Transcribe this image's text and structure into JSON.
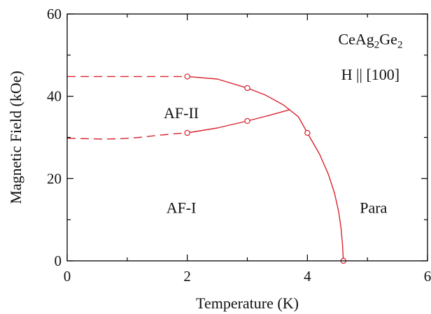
{
  "chart_data": {
    "type": "line",
    "xlabel": "Temperature (K)",
    "ylabel": "Magnetic Field (kOe)",
    "xlim": [
      0,
      6
    ],
    "ylim": [
      0,
      60
    ],
    "x_ticks": [
      "0",
      "2",
      "4",
      "6"
    ],
    "y_ticks": [
      "0",
      "20",
      "40",
      "60"
    ],
    "annotation": {
      "compound_parts": [
        {
          "text": "CeAg",
          "sub": false
        },
        {
          "text": "2",
          "sub": true
        },
        {
          "text": "Ge",
          "sub": false
        },
        {
          "text": "2",
          "sub": true
        }
      ],
      "field_direction": "H || [100]"
    },
    "regions": [
      {
        "label": "AF-II",
        "x": 1.9,
        "y": 36
      },
      {
        "label": "AF-I",
        "x": 1.9,
        "y": 13
      },
      {
        "label": "Para",
        "x": 5.1,
        "y": 13
      }
    ],
    "series": [
      {
        "style": "dashed",
        "points": [
          [
            0.0,
            44.8
          ],
          [
            0.5,
            44.8
          ],
          [
            1.0,
            44.8
          ],
          [
            1.5,
            44.8
          ],
          [
            2.0,
            44.8
          ]
        ]
      },
      {
        "style": "dashed",
        "points": [
          [
            0.0,
            29.8
          ],
          [
            0.3,
            29.7
          ],
          [
            0.6,
            29.6
          ],
          [
            0.9,
            29.7
          ],
          [
            1.2,
            30.0
          ],
          [
            1.5,
            30.5
          ],
          [
            1.8,
            30.9
          ],
          [
            2.0,
            31.1
          ]
        ]
      },
      {
        "style": "solid",
        "points": [
          [
            2.0,
            44.8
          ],
          [
            2.5,
            44.2
          ],
          [
            3.0,
            42.0
          ],
          [
            3.3,
            40.3
          ],
          [
            3.6,
            37.9
          ],
          [
            3.85,
            35.0
          ],
          [
            4.0,
            31.1
          ],
          [
            4.2,
            26.0
          ],
          [
            4.35,
            21.0
          ],
          [
            4.45,
            16.5
          ],
          [
            4.52,
            12.0
          ],
          [
            4.56,
            8.0
          ],
          [
            4.585,
            4.0
          ],
          [
            4.6,
            0.0
          ]
        ]
      },
      {
        "style": "solid",
        "points": [
          [
            2.0,
            31.1
          ],
          [
            2.5,
            32.3
          ],
          [
            3.0,
            34.0
          ],
          [
            3.35,
            35.3
          ],
          [
            3.7,
            36.7
          ]
        ]
      }
    ],
    "markers": [
      [
        2.0,
        44.8
      ],
      [
        3.0,
        42.0
      ],
      [
        2.0,
        31.1
      ],
      [
        3.0,
        34.0
      ],
      [
        4.0,
        31.1
      ],
      [
        4.6,
        0.0
      ]
    ],
    "colors": {
      "curve": "#d9232d",
      "marker_fill": "#ffffff"
    }
  }
}
